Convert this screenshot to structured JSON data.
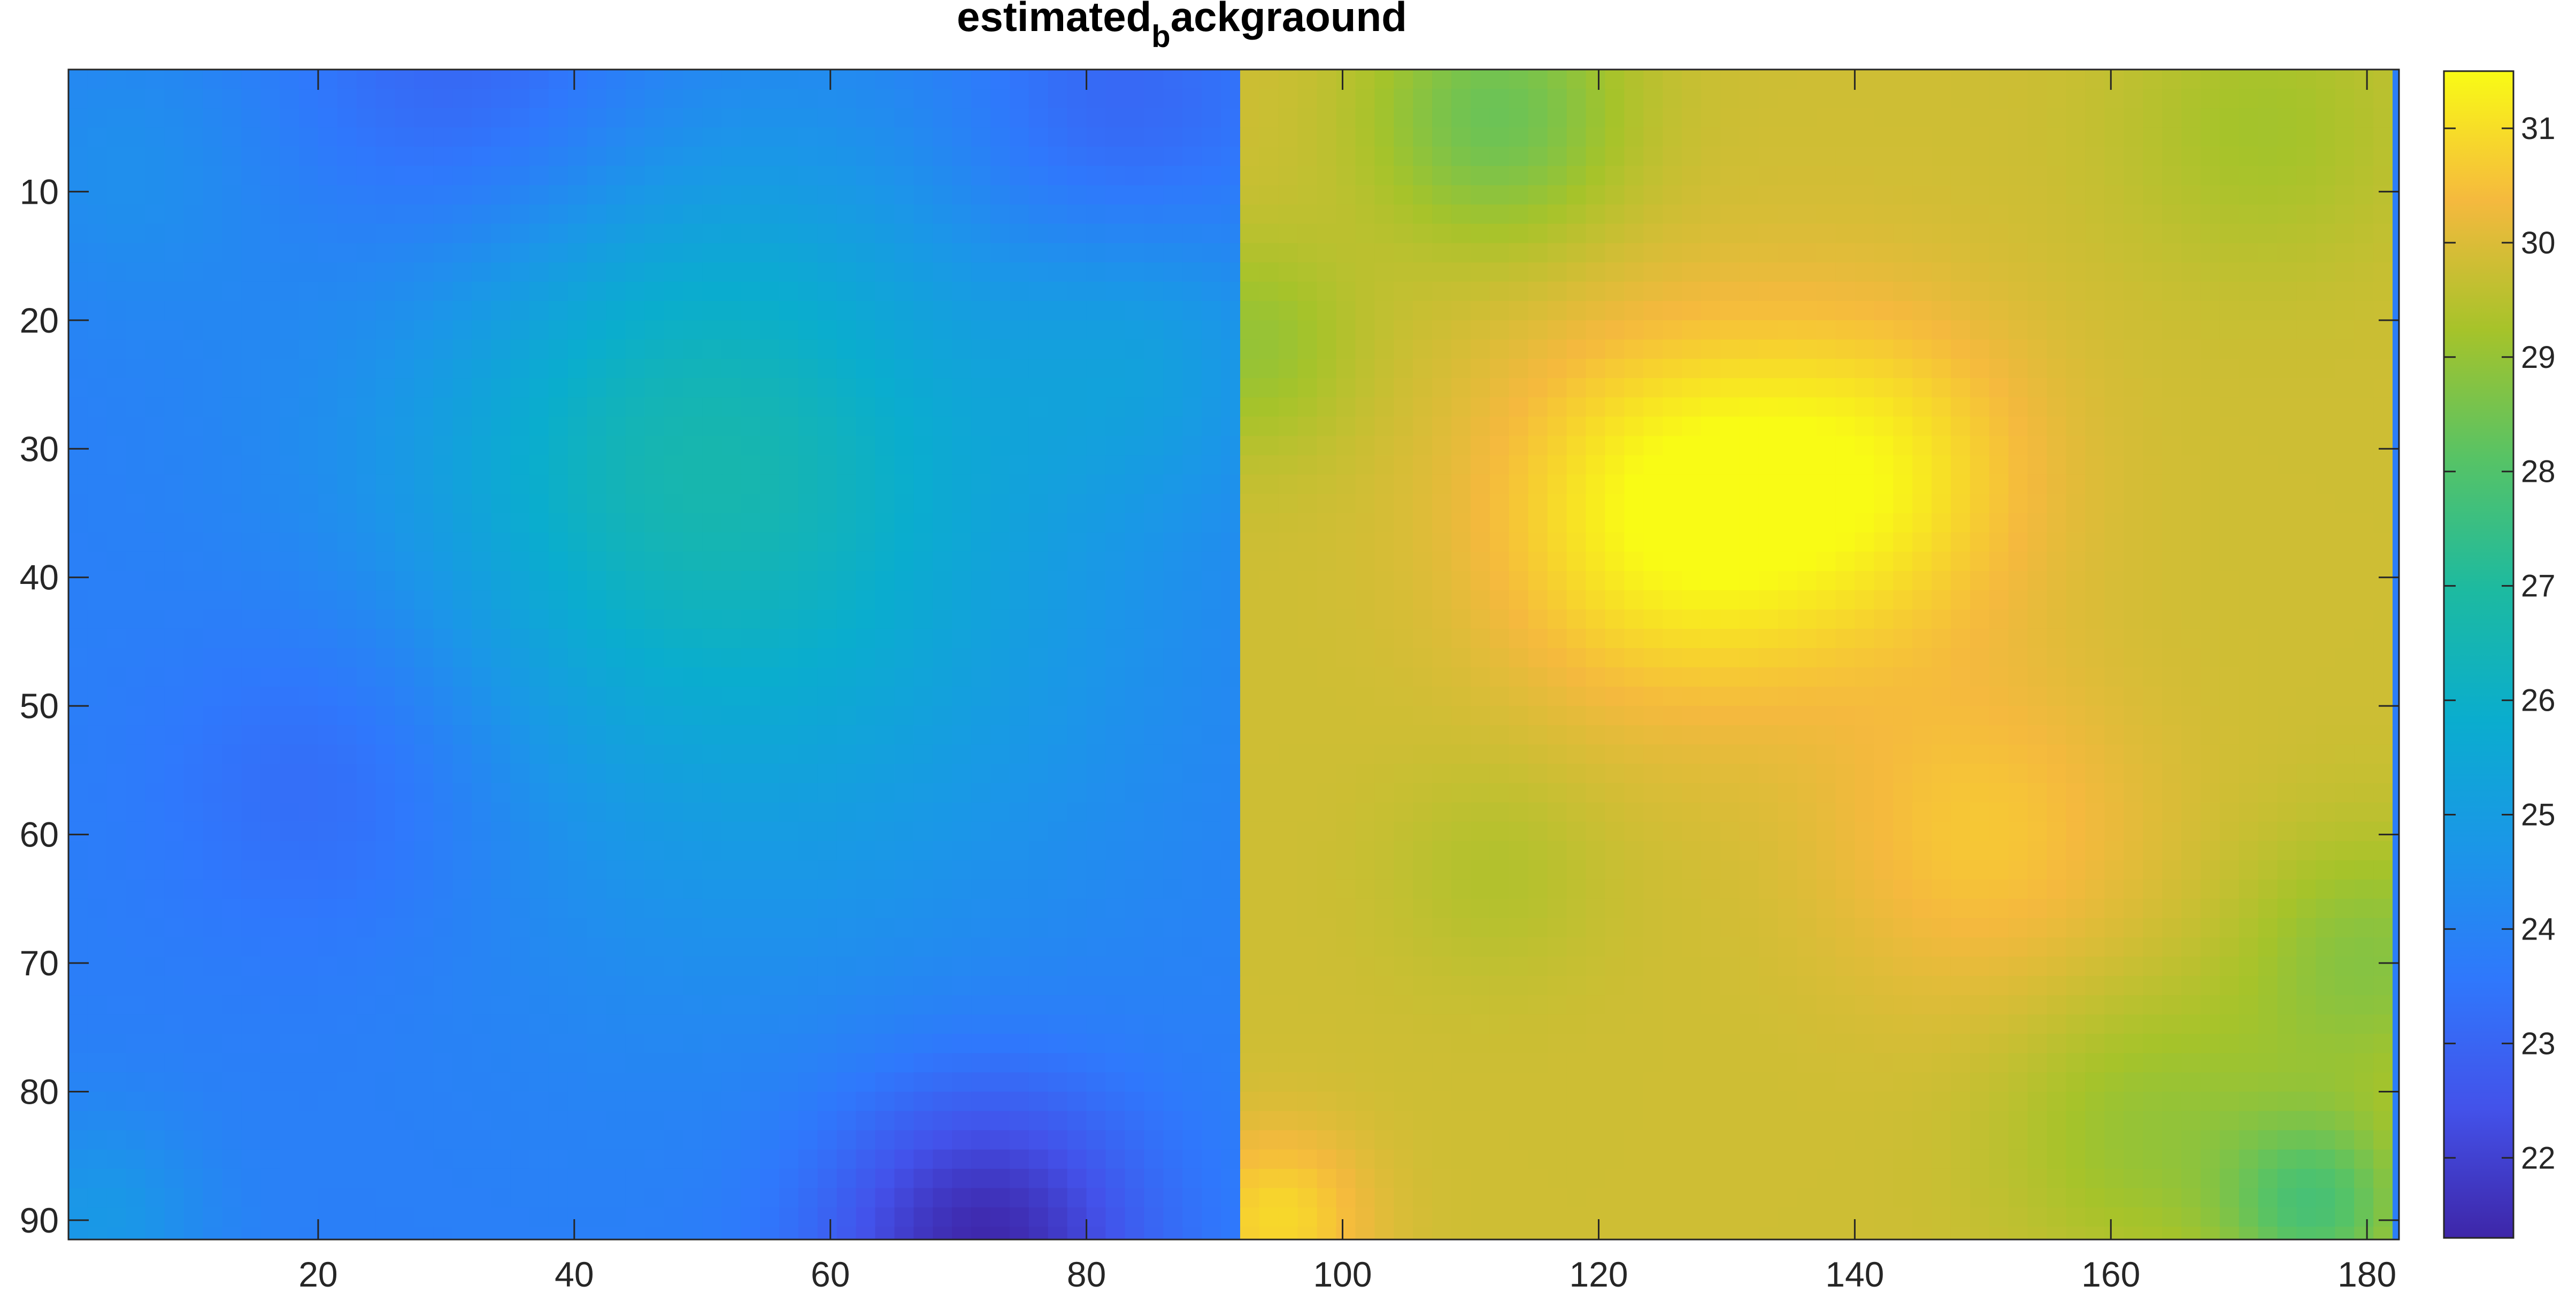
{
  "chart_data": {
    "type": "heatmap",
    "title": {
      "main": "estimated",
      "subscript": "b",
      "rest": "ackgraound"
    },
    "xlabel": "",
    "ylabel": "",
    "x_ticks": [
      20,
      40,
      60,
      80,
      100,
      120,
      140,
      160,
      180
    ],
    "y_ticks": [
      10,
      20,
      30,
      40,
      50,
      60,
      70,
      80,
      90
    ],
    "xlim": [
      0.5,
      182.5
    ],
    "ylim": [
      0.5,
      91.5
    ],
    "y_direction": "reverse",
    "colormap": "parula",
    "clim": [
      21.3,
      31.5
    ],
    "colorbar_ticks": [
      22,
      23,
      24,
      25,
      26,
      27,
      28,
      29,
      30,
      31
    ],
    "colors": {
      "parula_stops": [
        "#3e26a8",
        "#4352ea",
        "#2f78fc",
        "#1b96e8",
        "#0aadce",
        "#1dbaa0",
        "#56c366",
        "#a6c32a",
        "#f5b93e",
        "#f9fb15"
      ]
    },
    "regions": [
      {
        "name": "left-half",
        "x_range": [
          1,
          91
        ],
        "base_value": 23.8,
        "features": [
          {
            "x": 55,
            "y": 38,
            "value": 25.6,
            "spread": 22
          },
          {
            "x": 48,
            "y": 28,
            "value": 25.0,
            "spread": 14
          },
          {
            "x": 72,
            "y": 92,
            "value": 21.3,
            "spread": 9
          },
          {
            "x": 32,
            "y": 2,
            "value": 22.8,
            "spread": 10
          },
          {
            "x": 82,
            "y": 5,
            "value": 22.8,
            "spread": 9
          },
          {
            "x": 22,
            "y": 55,
            "value": 22.9,
            "spread": 10
          },
          {
            "x": 85,
            "y": 22,
            "value": 24.7,
            "spread": 8
          },
          {
            "x": 3,
            "y": 90,
            "value": 24.8,
            "spread": 6
          },
          {
            "x": 5,
            "y": 8,
            "value": 24.4,
            "spread": 8
          }
        ]
      },
      {
        "name": "right-half",
        "x_range": [
          92,
          182
        ],
        "base_value": 29.8,
        "features": [
          {
            "x": 126,
            "y": 35,
            "value": 31.5,
            "spread": 10
          },
          {
            "x": 142,
            "y": 32,
            "value": 31.0,
            "spread": 9
          },
          {
            "x": 112,
            "y": 4,
            "value": 28.4,
            "spread": 7
          },
          {
            "x": 176,
            "y": 89,
            "value": 28.0,
            "spread": 5
          },
          {
            "x": 163,
            "y": 83,
            "value": 29.0,
            "spread": 8
          },
          {
            "x": 180,
            "y": 70,
            "value": 28.8,
            "spread": 7
          },
          {
            "x": 93,
            "y": 22,
            "value": 29.0,
            "spread": 6
          },
          {
            "x": 150,
            "y": 60,
            "value": 30.6,
            "spread": 9
          },
          {
            "x": 95,
            "y": 90,
            "value": 30.9,
            "spread": 5
          },
          {
            "x": 172,
            "y": 5,
            "value": 29.2,
            "spread": 8
          },
          {
            "x": 112,
            "y": 63,
            "value": 29.4,
            "spread": 6
          }
        ]
      }
    ]
  }
}
